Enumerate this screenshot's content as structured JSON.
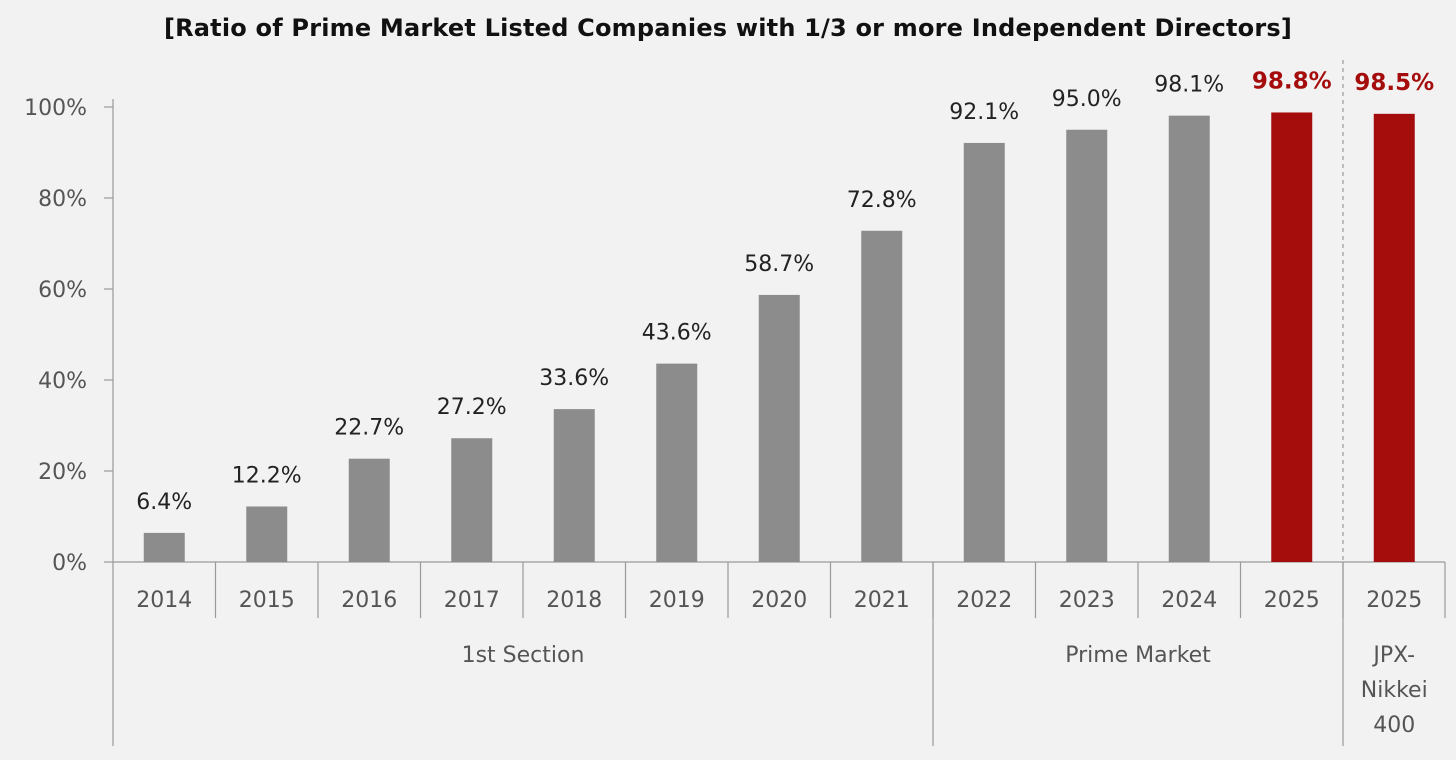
{
  "chart_data": {
    "type": "bar",
    "title": "[Ratio of Prime Market Listed Companies with 1/3 or more Independent Directors]",
    "ylim": [
      0,
      100
    ],
    "yticks": [
      0,
      20,
      40,
      60,
      80,
      100
    ],
    "ytick_labels": [
      "0%",
      "20%",
      "40%",
      "60%",
      "80%",
      "100%"
    ],
    "categories": [
      "2014",
      "2015",
      "2016",
      "2017",
      "2018",
      "2019",
      "2020",
      "2021",
      "2022",
      "2023",
      "2024",
      "2025",
      "2025"
    ],
    "values": [
      6.4,
      12.2,
      22.7,
      27.2,
      33.6,
      43.6,
      58.7,
      72.8,
      92.1,
      95.0,
      98.1,
      98.8,
      98.5
    ],
    "value_labels": [
      "6.4%",
      "12.2%",
      "22.7%",
      "27.2%",
      "33.6%",
      "43.6%",
      "58.7%",
      "72.8%",
      "92.1%",
      "95.0%",
      "98.1%",
      "98.8%",
      "98.5%"
    ],
    "highlighted": [
      false,
      false,
      false,
      false,
      false,
      false,
      false,
      false,
      false,
      false,
      false,
      true,
      true
    ],
    "groups": [
      {
        "label_lines": [
          "1st Section"
        ],
        "count": 8
      },
      {
        "label_lines": [
          "Prime Market"
        ],
        "count": 4
      },
      {
        "label_lines": [
          "JPX-",
          "Nikkei",
          "400"
        ],
        "count": 1
      }
    ],
    "colors": {
      "bar": "#8c8c8c",
      "highlight": "#a50d0d",
      "axis": "#9a9a9a",
      "text": "#222222",
      "tick_text": "#555555"
    }
  }
}
